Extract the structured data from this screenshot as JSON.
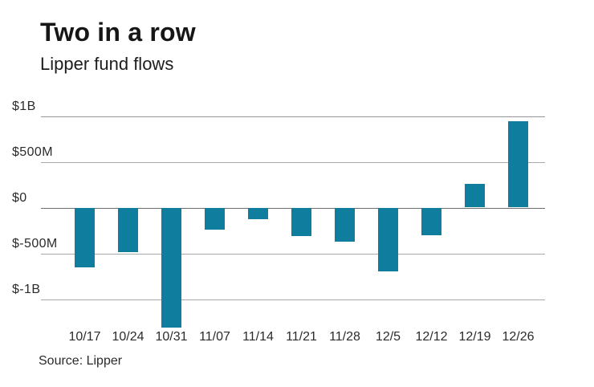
{
  "chart_data": {
    "type": "bar",
    "title": "Two in a row",
    "subtitle": "Lipper fund flows",
    "source": "Source: Lipper",
    "unit": "USD millions",
    "bar_color": "#0e7d9e",
    "categories": [
      "10/17",
      "10/24",
      "10/31",
      "11/07",
      "11/14",
      "11/21",
      "11/28",
      "12/5",
      "12/12",
      "12/19",
      "12/26"
    ],
    "values_millions": [
      -650,
      -490,
      -1310,
      -240,
      -130,
      -310,
      -370,
      -700,
      -300,
      260,
      940
    ],
    "y_axis": {
      "ticks": [
        {
          "label": "$1B",
          "value": 1000
        },
        {
          "label": "$500M",
          "value": 500
        },
        {
          "label": "$0",
          "value": 0
        },
        {
          "label": "$-500M",
          "value": -500
        },
        {
          "label": "$-1B",
          "value": -1000
        }
      ],
      "range_millions": [
        -1400,
        1100
      ]
    },
    "grid": true,
    "legend": false
  }
}
